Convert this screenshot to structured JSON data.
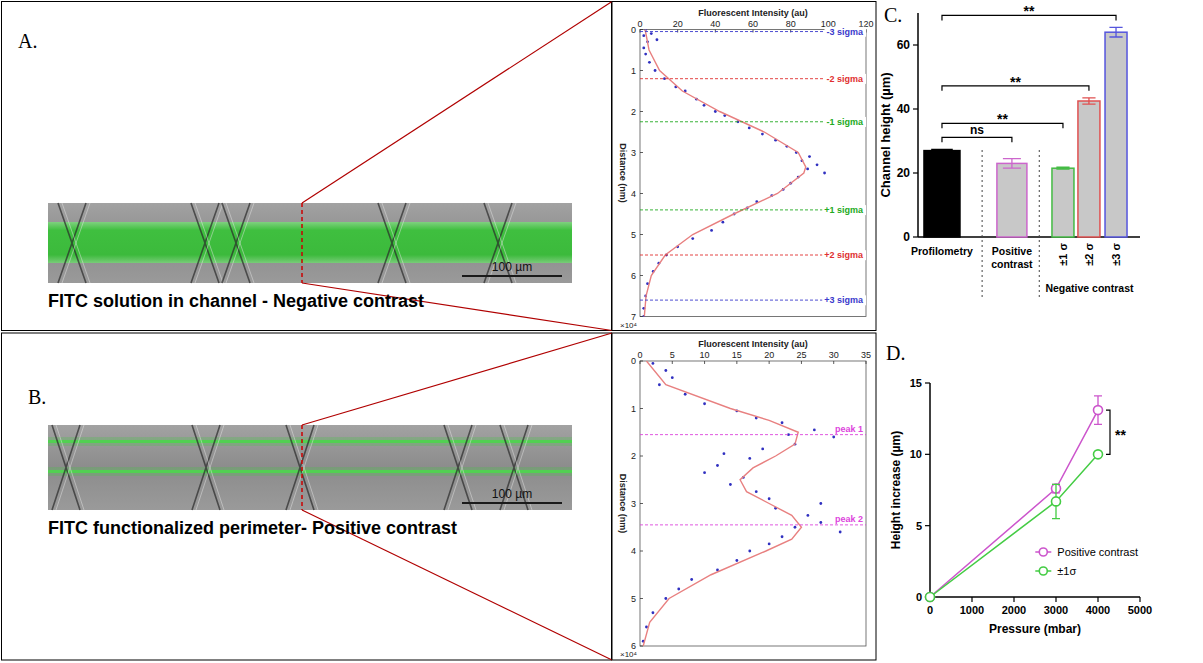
{
  "figure": {
    "panels": [
      {
        "letter": "A.",
        "caption": "FITC solution in channel - Negative contrast",
        "scale_bar": "100 µm"
      },
      {
        "letter": "B.",
        "caption": "FITC functionalized perimeter- Positive contrast",
        "scale_bar": "100 µm"
      }
    ]
  },
  "chart_data": [
    {
      "type": "profile",
      "x_label": "Fluorescent Intensity (au)",
      "y_label": "Distance (nm)",
      "xlim": [
        0,
        120
      ],
      "xticks": [
        0,
        20,
        40,
        60,
        80,
        100,
        120
      ],
      "ylim": [
        0,
        7
      ],
      "yticks": [
        0,
        1,
        2,
        3,
        4,
        5,
        6,
        7
      ],
      "annotations": [
        {
          "text": "×10⁴"
        }
      ],
      "reference_lines": [
        {
          "value": 0.05,
          "label": "-3 sigma",
          "color": "#3a3acc"
        },
        {
          "value": 1.2,
          "label": "-2 sigma",
          "color": "#e03030"
        },
        {
          "value": 2.25,
          "label": "-1 sigma",
          "color": "#22aa22"
        },
        {
          "value": 4.4,
          "label": "+1 sigma",
          "color": "#22aa22"
        },
        {
          "value": 5.5,
          "label": "+2 sigma",
          "color": "#e03030"
        },
        {
          "value": 6.6,
          "label": "+3 sigma",
          "color": "#3a3acc"
        }
      ],
      "series": [
        {
          "type": "scatter",
          "marker": "dot",
          "color": "#3030c0",
          "x": [
            3,
            6,
            2,
            9,
            4,
            2,
            3,
            5,
            8,
            13,
            19,
            24,
            30,
            34,
            40,
            45,
            52,
            58,
            65,
            72,
            78,
            83,
            90,
            86,
            94,
            89,
            98,
            84,
            80,
            76,
            70,
            62,
            57,
            50,
            44,
            38,
            28,
            20,
            14,
            10,
            7,
            4,
            3,
            2,
            2
          ],
          "values": [
            0.0,
            0.1,
            0.15,
            0.25,
            0.3,
            0.45,
            0.6,
            0.8,
            1.0,
            1.2,
            1.4,
            1.5,
            1.7,
            1.85,
            2.0,
            2.1,
            2.25,
            2.4,
            2.55,
            2.7,
            2.85,
            3.0,
            3.1,
            3.2,
            3.3,
            3.4,
            3.5,
            3.6,
            3.75,
            3.9,
            4.05,
            4.2,
            4.35,
            4.5,
            4.7,
            4.9,
            5.1,
            5.3,
            5.5,
            5.7,
            5.9,
            6.2,
            6.5,
            6.8,
            7.0
          ]
        },
        {
          "type": "line",
          "line_style": "solid",
          "color": "#e88080",
          "x": [
            2.7,
            4.8,
            10.4,
            22.5,
            42.3,
            66,
            84,
            88,
            87,
            73,
            49.8,
            28,
            13.4,
            6,
            3.2,
            2.3
          ],
          "values": [
            0,
            0.5,
            1,
            1.5,
            2,
            2.5,
            3,
            3.35,
            3.5,
            4,
            4.5,
            5,
            5.5,
            6,
            6.5,
            7
          ]
        }
      ]
    },
    {
      "type": "profile",
      "x_label": "Fluorescent Intensity (au)",
      "y_label": "Distance (nm)",
      "xlim": [
        0,
        35
      ],
      "xticks": [
        0,
        5,
        10,
        15,
        20,
        25,
        30,
        35
      ],
      "ylim": [
        0,
        6
      ],
      "yticks": [
        0,
        1,
        2,
        3,
        4,
        5,
        6
      ],
      "annotations": [
        {
          "text": "×10⁴"
        }
      ],
      "reference_lines": [
        {
          "value": 1.55,
          "label": "peak 1",
          "color": "#dd44dd"
        },
        {
          "value": 3.45,
          "label": "peak 2",
          "color": "#dd44dd"
        }
      ],
      "series": [
        {
          "type": "scatter",
          "marker": "dot",
          "color": "#3030c0",
          "x": [
            2,
            4,
            5,
            3,
            7,
            10,
            15,
            18,
            22,
            27,
            23,
            30,
            24,
            19,
            13,
            17,
            12,
            10,
            16,
            14,
            18,
            20,
            28,
            21,
            26,
            28,
            24,
            31,
            22,
            20,
            17,
            15,
            12,
            8,
            6,
            4,
            2,
            1,
            0.5
          ],
          "values": [
            0.05,
            0.2,
            0.35,
            0.5,
            0.7,
            0.9,
            1.05,
            1.2,
            1.3,
            1.45,
            1.55,
            1.6,
            1.75,
            1.85,
            1.95,
            2.05,
            2.2,
            2.35,
            2.45,
            2.6,
            2.75,
            2.9,
            3.0,
            3.1,
            3.25,
            3.4,
            3.5,
            3.6,
            3.7,
            3.85,
            4.0,
            4.2,
            4.4,
            4.6,
            4.8,
            5.0,
            5.3,
            5.6,
            5.9
          ]
        },
        {
          "type": "line",
          "line_style": "solid",
          "color": "#e88080",
          "x": [
            1,
            4,
            14,
            20,
            24.5,
            24,
            21,
            17.5,
            15.5,
            16.5,
            20,
            23.5,
            25,
            23.5,
            19.5,
            11,
            4.5,
            1.5,
            0.5
          ],
          "values": [
            0,
            0.5,
            1,
            1.25,
            1.5,
            1.75,
            2,
            2.25,
            2.5,
            2.75,
            3,
            3.25,
            3.5,
            3.75,
            4,
            4.5,
            5,
            5.5,
            6
          ]
        }
      ]
    },
    {
      "type": "bar",
      "letter": "C.",
      "y_label": "Channel height (µm)",
      "categories": [
        "Profilometry",
        "Positive contrast",
        "±1 σ",
        "±2 σ",
        "±3 σ"
      ],
      "groups": [
        {
          "label": "Negative contrast",
          "categories": [
            "±1 σ",
            "±2 σ",
            "±3 σ"
          ]
        }
      ],
      "values": [
        27,
        23,
        21.5,
        42.5,
        64
      ],
      "errors": [
        0.4,
        1.5,
        0.3,
        1,
        1.5
      ],
      "colors": [
        "#000000",
        "#cc66cc",
        "#44bb44",
        "#e05050",
        "#5555dd"
      ],
      "ylim": [
        0,
        70
      ],
      "yticks": [
        0,
        20,
        40,
        60
      ],
      "annotations": [
        {
          "from": "Profilometry",
          "to": "Positive contrast",
          "text": "ns"
        },
        {
          "from": "Profilometry",
          "to": "±1 σ",
          "text": "**"
        },
        {
          "from": "Profilometry",
          "to": "±2 σ",
          "text": "**"
        },
        {
          "from": "Profilometry",
          "to": "±3 σ",
          "text": "**"
        }
      ]
    },
    {
      "type": "line",
      "letter": "D.",
      "x_label": "Pressure (mbar)",
      "y_label": "Height increase (µm)",
      "xlim": [
        0,
        5000
      ],
      "xticks": [
        0,
        1000,
        2000,
        3000,
        4000,
        5000
      ],
      "ylim": [
        0,
        15
      ],
      "yticks": [
        0,
        5,
        10,
        15
      ],
      "legend": "lower right",
      "series": [
        {
          "name": "Positive contrast",
          "color": "#cc55cc",
          "marker": "circle",
          "line_style": "solid",
          "x": [
            0,
            3000,
            4000
          ],
          "values": [
            0,
            7.6,
            13.1
          ],
          "errors": [
            0,
            0.3,
            1
          ]
        },
        {
          "name": "±1σ",
          "color": "#44cc44",
          "marker": "circle",
          "line_style": "solid",
          "x": [
            0,
            3000,
            4000
          ],
          "values": [
            0,
            6.7,
            10
          ],
          "errors": [
            0,
            1.2,
            0.1
          ]
        }
      ],
      "annotations": [
        {
          "text": "**",
          "x": 4000,
          "between": [
            "Positive contrast",
            "±1σ"
          ]
        }
      ]
    }
  ]
}
